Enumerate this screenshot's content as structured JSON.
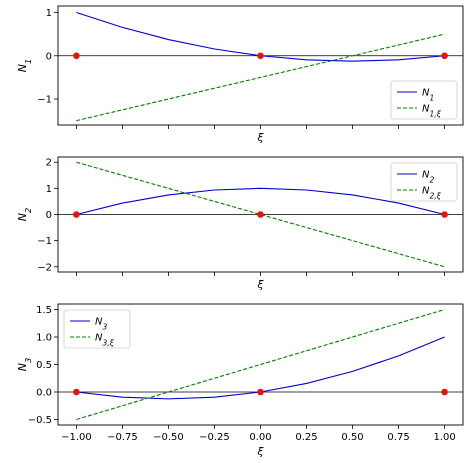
{
  "chart_data": [
    {
      "type": "line",
      "ylabel": "N_1",
      "xlabel": "ξ",
      "xlim": [
        -1.1,
        1.1
      ],
      "ylim": [
        -1.6,
        1.15
      ],
      "xticks": [
        -1.0,
        -0.75,
        -0.5,
        -0.25,
        0.0,
        0.25,
        0.5,
        0.75,
        1.0
      ],
      "yticks": [
        1,
        0,
        -1
      ],
      "ytick_labels": [
        "1",
        "0",
        "−1"
      ],
      "show_xtick_labels": false,
      "grid": false,
      "zero_line": true,
      "legend": "bottom-right",
      "nodes": [
        [
          -1,
          0
        ],
        [
          0,
          0
        ],
        [
          1,
          0
        ]
      ],
      "series": [
        {
          "name": "N_1",
          "style": "solid",
          "color": "#0000cc",
          "x": [
            -1.0,
            -0.75,
            -0.5,
            -0.25,
            0.0,
            0.25,
            0.5,
            0.75,
            1.0
          ],
          "y": [
            1.0,
            0.656,
            0.375,
            0.156,
            0.0,
            -0.094,
            -0.125,
            -0.094,
            0.0
          ]
        },
        {
          "name": "N_{1,ξ}",
          "style": "dashed",
          "color": "#008000",
          "x": [
            -1.0,
            1.0
          ],
          "y": [
            -1.5,
            0.5
          ]
        }
      ]
    },
    {
      "type": "line",
      "ylabel": "N_2",
      "xlabel": "ξ",
      "xlim": [
        -1.1,
        1.1
      ],
      "ylim": [
        -2.2,
        2.2
      ],
      "xticks": [
        -1.0,
        -0.75,
        -0.5,
        -0.25,
        0.0,
        0.25,
        0.5,
        0.75,
        1.0
      ],
      "yticks": [
        2,
        1,
        0,
        -1,
        -2
      ],
      "ytick_labels": [
        "2",
        "1",
        "0",
        "−1",
        "−2"
      ],
      "show_xtick_labels": false,
      "grid": false,
      "zero_line": true,
      "legend": "top-right",
      "nodes": [
        [
          -1,
          0
        ],
        [
          0,
          0
        ],
        [
          1,
          0
        ]
      ],
      "series": [
        {
          "name": "N_2",
          "style": "solid",
          "color": "#0000cc",
          "x": [
            -1.0,
            -0.75,
            -0.5,
            -0.25,
            0.0,
            0.25,
            0.5,
            0.75,
            1.0
          ],
          "y": [
            0.0,
            0.4375,
            0.75,
            0.9375,
            1.0,
            0.9375,
            0.75,
            0.4375,
            0.0
          ]
        },
        {
          "name": "N_{2,ξ}",
          "style": "dashed",
          "color": "#008000",
          "x": [
            -1.0,
            1.0
          ],
          "y": [
            2.0,
            -2.0
          ]
        }
      ]
    },
    {
      "type": "line",
      "ylabel": "N_3",
      "xlabel": "ξ",
      "xlim": [
        -1.1,
        1.1
      ],
      "ylim": [
        -0.6,
        1.6
      ],
      "xticks": [
        -1.0,
        -0.75,
        -0.5,
        -0.25,
        0.0,
        0.25,
        0.5,
        0.75,
        1.0
      ],
      "xtick_labels": [
        "−1.00",
        "−0.75",
        "−0.50",
        "−0.25",
        "0.00",
        "0.25",
        "0.50",
        "0.75",
        "1.00"
      ],
      "yticks": [
        1.5,
        1.0,
        0.5,
        0.0,
        -0.5
      ],
      "ytick_labels": [
        "1.5",
        "1.0",
        "0.5",
        "0.0",
        "−0.5"
      ],
      "show_xtick_labels": true,
      "grid": false,
      "zero_line": true,
      "legend": "top-left",
      "nodes": [
        [
          -1,
          0
        ],
        [
          0,
          0
        ],
        [
          1,
          0
        ]
      ],
      "series": [
        {
          "name": "N_3",
          "style": "solid",
          "color": "#0000cc",
          "x": [
            -1.0,
            -0.75,
            -0.5,
            -0.25,
            0.0,
            0.25,
            0.5,
            0.75,
            1.0
          ],
          "y": [
            0.0,
            -0.094,
            -0.125,
            -0.094,
            0.0,
            0.156,
            0.375,
            0.656,
            1.0
          ]
        },
        {
          "name": "N_{3,ξ}",
          "style": "dashed",
          "color": "#008000",
          "x": [
            -1.0,
            1.0
          ],
          "y": [
            -0.5,
            1.5
          ]
        }
      ]
    }
  ]
}
